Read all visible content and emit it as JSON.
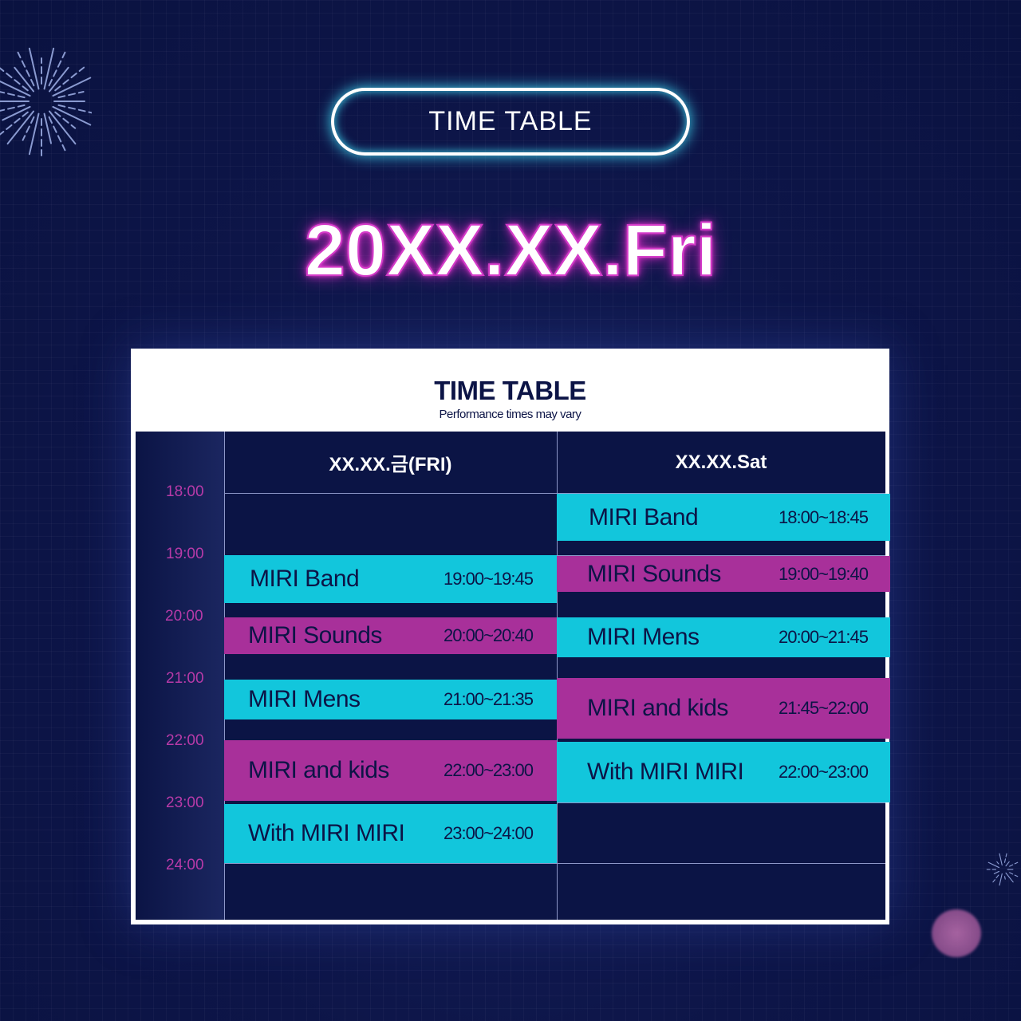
{
  "banner": {
    "label": "TIME TABLE"
  },
  "date_title": "20XX.XX.Fri",
  "card": {
    "title": "TIME TABLE",
    "subtitle": "Performance times may vary"
  },
  "times": [
    "18:00",
    "19:00",
    "20:00",
    "21:00",
    "22:00",
    "23:00",
    "24:00"
  ],
  "days": [
    {
      "label": "XX.XX.금(FRI)",
      "events": [
        {
          "name": "MIRI Band",
          "time": "19:00~19:45",
          "color": "#12c6dc"
        },
        {
          "name": "MIRI Sounds",
          "time": "20:00~20:40",
          "color": "#a8309a"
        },
        {
          "name": "MIRI Mens",
          "time": "21:00~21:35",
          "color": "#12c6dc"
        },
        {
          "name": "MIRI and kids",
          "time": "22:00~23:00",
          "color": "#a8309a"
        },
        {
          "name": "With MIRI MIRI",
          "time": "23:00~24:00",
          "color": "#12c6dc"
        }
      ]
    },
    {
      "label": "XX.XX.Sat",
      "events": [
        {
          "name": "MIRI Band",
          "time": "18:00~18:45",
          "color": "#12c6dc"
        },
        {
          "name": "MIRI Sounds",
          "time": "19:00~19:40",
          "color": "#a8309a"
        },
        {
          "name": "MIRI Mens",
          "time": "20:00~21:45",
          "color": "#12c6dc"
        },
        {
          "name": "MIRI and kids",
          "time": "21:45~22:00",
          "color": "#a8309a"
        },
        {
          "name": "With MIRI MIRI",
          "time": "22:00~23:00",
          "color": "#12c6dc"
        }
      ]
    }
  ],
  "colors": {
    "background": "#0d1548",
    "cyan": "#12c6dc",
    "magenta": "#a8309a",
    "glow": "#3fd7f0"
  }
}
